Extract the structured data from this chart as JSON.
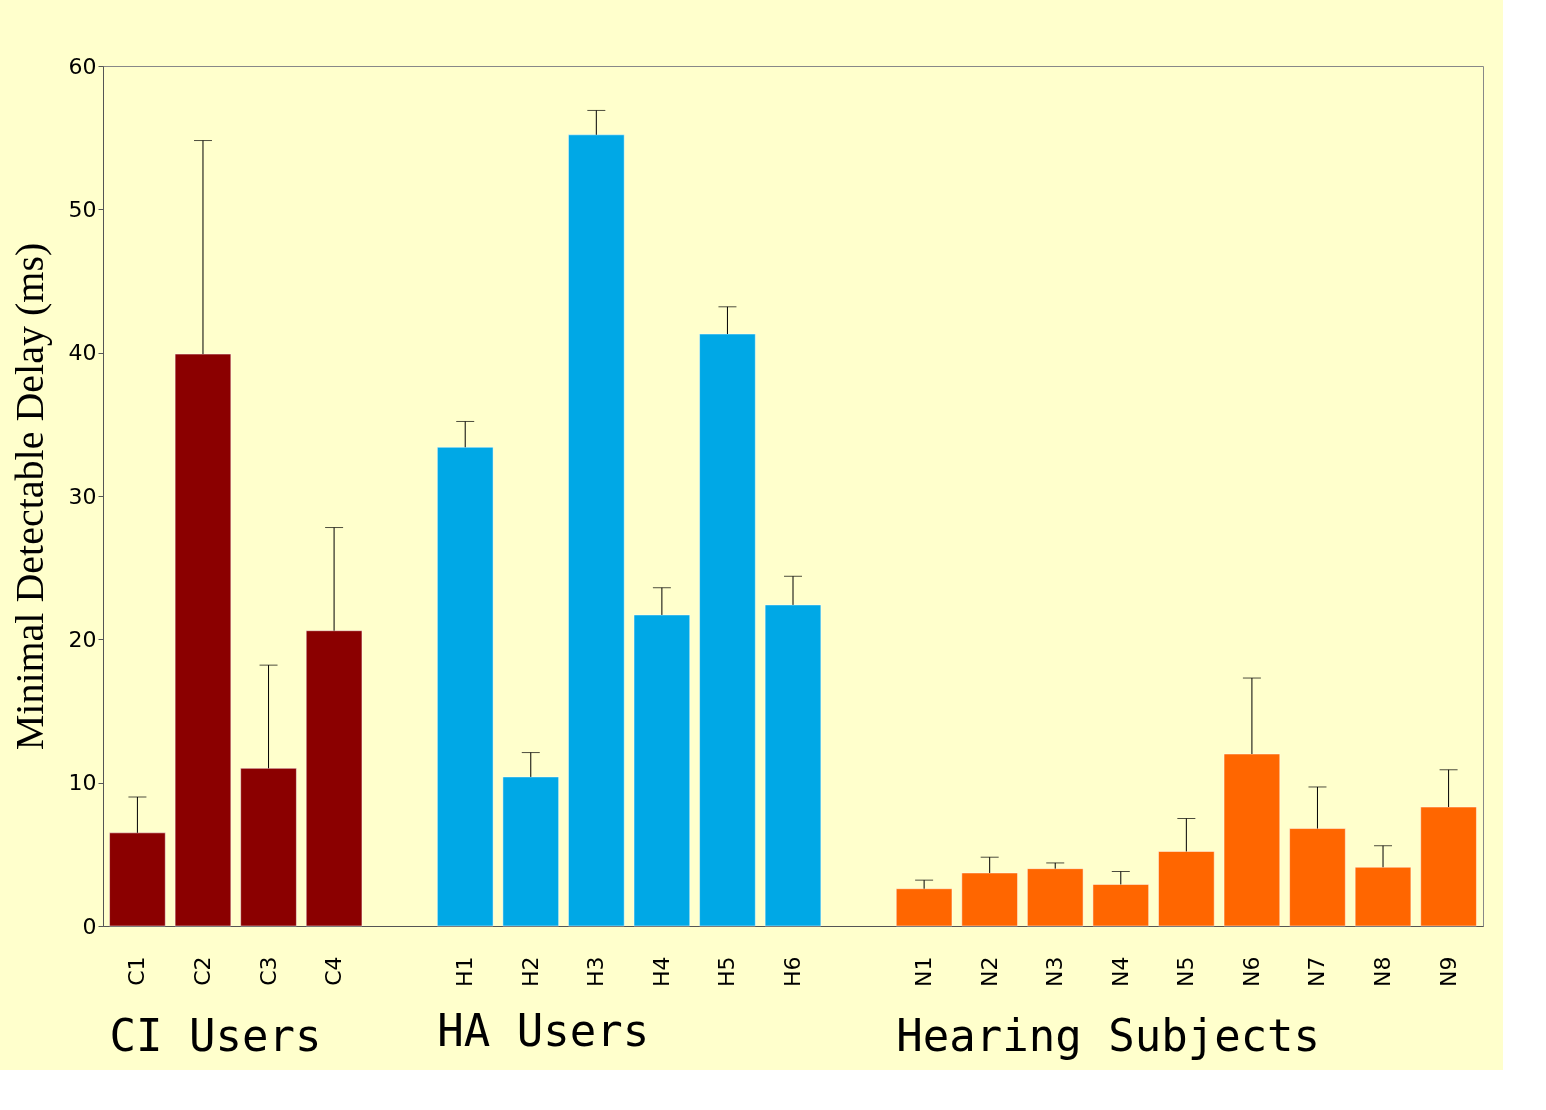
{
  "chart_data": {
    "type": "bar",
    "ylabel": "Minimal Detectable Delay (ms)",
    "categories": [
      "C1",
      "C2",
      "C3",
      "C4",
      null,
      "H1",
      "H2",
      "H3",
      "H4",
      "H5",
      "H6",
      null,
      "N1",
      "N2",
      "N3",
      "N4",
      "N5",
      "N6",
      "N7",
      "N8",
      "N9"
    ],
    "series": [
      {
        "color": "#8b0000",
        "values": [
          6.5,
          39.9,
          11.0,
          20.6,
          null,
          null,
          null,
          null,
          null,
          null,
          null,
          null,
          null,
          null,
          null,
          null,
          null,
          null,
          null,
          null,
          null
        ],
        "errors": [
          [
            6.5,
            9.0
          ],
          [
            39.9,
            54.8
          ],
          [
            11.0,
            18.2
          ],
          [
            20.6,
            27.8
          ],
          null,
          null,
          null,
          null,
          null,
          null,
          null,
          null,
          null,
          null,
          null,
          null,
          null,
          null,
          null,
          null,
          null
        ]
      },
      {
        "color": "#00a8e6",
        "values": [
          null,
          null,
          null,
          null,
          null,
          33.4,
          10.4,
          55.2,
          21.7,
          41.3,
          22.4,
          null,
          null,
          null,
          null,
          null,
          null,
          null,
          null,
          null,
          null
        ],
        "errors": [
          null,
          null,
          null,
          null,
          null,
          [
            33.4,
            35.2
          ],
          [
            10.4,
            12.1
          ],
          [
            55.2,
            56.9
          ],
          [
            21.7,
            23.6
          ],
          [
            41.3,
            43.2
          ],
          [
            22.4,
            24.4
          ],
          null,
          null,
          null,
          null,
          null,
          null,
          null,
          null,
          null,
          null
        ]
      },
      {
        "color": "#ff6600",
        "values": [
          null,
          null,
          null,
          null,
          null,
          null,
          null,
          null,
          null,
          null,
          null,
          null,
          2.6,
          3.7,
          4.0,
          2.9,
          5.2,
          12.0,
          6.8,
          4.1,
          8.3
        ],
        "errors": [
          null,
          null,
          null,
          null,
          null,
          null,
          null,
          null,
          null,
          null,
          null,
          null,
          [
            2.6,
            3.2
          ],
          [
            3.7,
            4.8
          ],
          [
            4.0,
            4.4
          ],
          [
            2.9,
            3.8
          ],
          [
            5.2,
            7.5
          ],
          [
            12.0,
            17.3
          ],
          [
            6.8,
            9.7
          ],
          [
            4.1,
            5.6
          ],
          [
            8.3,
            10.9
          ]
        ]
      }
    ],
    "annotations": [
      "CI Users",
      "HA Users",
      "Hearing Subjects"
    ],
    "ylim": [
      0,
      60
    ],
    "yticks": [
      0,
      10,
      20,
      30,
      40,
      50,
      60
    ],
    "grid": false,
    "legend": false
  }
}
